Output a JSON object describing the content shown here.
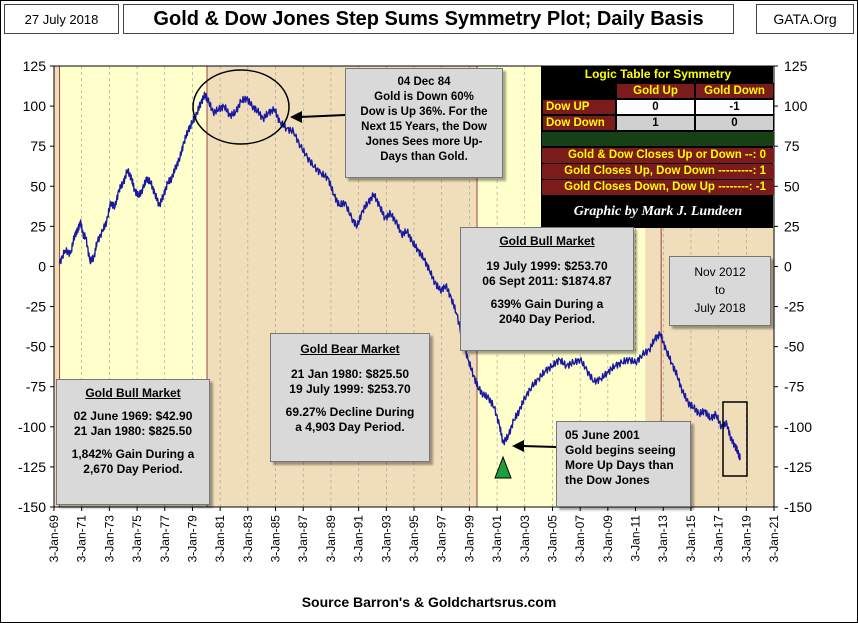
{
  "header": {
    "date": "27 July 2018",
    "title": "Gold & Dow Jones Step Sums Symmetry Plot; Daily Basis",
    "site": "GATA.Org"
  },
  "source": "Source Barron's & Goldchartsrus.com",
  "colors": {
    "line": "#1a1aa0",
    "zone_yellow": "#ffffcc",
    "zone_tan": "#f0debb",
    "divider": "#a04040",
    "arrow_green": "#1e9e3a"
  },
  "annotations": {
    "dec84": [
      "04 Dec 84",
      "Gold is Down 60%",
      "Dow is Up 36%.  For the",
      "Next 15 Years, the Dow",
      "Jones Sees more Up-",
      "Days than Gold."
    ],
    "bull1": {
      "title": "Gold Bull Market",
      "lines": [
        "02 June 1969:  $42.90",
        "21 Jan 1980:  $825.50",
        "",
        "1,842%  Gain During a",
        "2,670  Day Period."
      ]
    },
    "bear": {
      "title": "Gold Bear Market",
      "lines": [
        "21 Jan 1980:  $825.50",
        "19 July 1999:  $253.70",
        "",
        "69.27%  Decline During",
        "a 4,903 Day Period."
      ]
    },
    "bull2": {
      "title": "Gold Bull Market",
      "lines": [
        "19 July 1999:   $253.70",
        "06 Sept 2011:  $1874.87",
        "",
        "639%  Gain During a",
        "2040  Day Period."
      ]
    },
    "nov2012": [
      "Nov 2012",
      "to",
      "July 2018"
    ],
    "june2001": [
      "05 June 2001",
      "Gold  begins seeing",
      "More Up Days than",
      "the Dow Jones"
    ]
  },
  "logic_table": {
    "title": "Logic Table for Symmetry",
    "col_headers": [
      "Gold Up",
      "Gold Down"
    ],
    "rows": [
      {
        "label": "Dow UP",
        "values": [
          "0",
          "-1"
        ]
      },
      {
        "label": "Dow Down",
        "values": [
          "1",
          "0"
        ]
      }
    ],
    "rules": [
      "Gold & Dow Closes Up or Down --:  0",
      "Gold Closes Up, Dow Down ---------:  1",
      "Gold Closes Down, Dow Up --------:  -1"
    ],
    "credit": "Graphic by Mark J. Lundeen"
  },
  "chart_data": {
    "type": "line",
    "title": "Gold & Dow Jones Step Sums Symmetry Plot; Daily Basis",
    "xlabel": "",
    "ylabel": "",
    "ylim": [
      -150,
      125
    ],
    "y_ticks": [
      125,
      100,
      75,
      50,
      25,
      0,
      -25,
      -50,
      -75,
      -100,
      -125,
      -150
    ],
    "y_tick_labels": [
      "125",
      "100",
      "75",
      "50",
      "25",
      "0",
      "-25",
      "-50",
      "-75",
      "-100",
      "-125",
      "-150"
    ],
    "xlim": [
      1969.0,
      2021.0
    ],
    "x_ticks": [
      1969,
      1971,
      1973,
      1975,
      1977,
      1979,
      1981,
      1983,
      1985,
      1987,
      1989,
      1991,
      1993,
      1995,
      1997,
      1999,
      2001,
      2003,
      2005,
      2007,
      2009,
      2011,
      2013,
      2015,
      2017,
      2019,
      2021
    ],
    "x_tick_labels": [
      "3-Jan-69",
      "3-Jan-71",
      "3-Jan-73",
      "3-Jan-75",
      "3-Jan-77",
      "3-Jan-79",
      "3-Jan-81",
      "3-Jan-83",
      "3-Jan-85",
      "3-Jan-87",
      "3-Jan-89",
      "3-Jan-91",
      "3-Jan-93",
      "3-Jan-95",
      "3-Jan-97",
      "3-Jan-99",
      "3-Jan-01",
      "3-Jan-03",
      "3-Jan-05",
      "3-Jan-07",
      "3-Jan-09",
      "3-Jan-11",
      "3-Jan-13",
      "3-Jan-15",
      "3-Jan-17",
      "3-Jan-19",
      "3-Jan-21"
    ],
    "zones": [
      {
        "start": 1969.4,
        "end": 1980.05,
        "label": "Gold Bull Market",
        "color": "yellow"
      },
      {
        "start": 1980.05,
        "end": 1999.55,
        "label": "Gold Bear Market",
        "color": "tan"
      },
      {
        "start": 1999.55,
        "end": 2011.7,
        "label": "Gold Bull Market",
        "color": "yellow"
      },
      {
        "start": 2012.85,
        "end": 2021.0,
        "label": "Nov 2012 to July 2018",
        "color": "tan"
      }
    ],
    "series": [
      {
        "name": "Gold & Dow Step Sums",
        "x": [
          1969.4,
          1969.8,
          1970.2,
          1970.5,
          1970.7,
          1970.9,
          1971.1,
          1971.3,
          1971.6,
          1971.9,
          1972.1,
          1972.5,
          1972.8,
          1973.1,
          1973.4,
          1973.7,
          1974.0,
          1974.3,
          1974.6,
          1974.8,
          1975.1,
          1975.4,
          1975.7,
          1976.0,
          1976.3,
          1976.6,
          1976.9,
          1977.2,
          1977.5,
          1977.8,
          1978.1,
          1978.4,
          1978.7,
          1979.0,
          1979.3,
          1979.6,
          1979.9,
          1980.1,
          1980.5,
          1980.9,
          1981.3,
          1981.7,
          1982.1,
          1982.5,
          1982.9,
          1983.3,
          1983.7,
          1984.1,
          1984.5,
          1984.93,
          1985.3,
          1985.8,
          1986.3,
          1986.8,
          1987.3,
          1987.8,
          1988.3,
          1988.8,
          1989.2,
          1989.6,
          1990.0,
          1990.5,
          1990.9,
          1991.3,
          1991.7,
          1992.1,
          1992.5,
          1992.9,
          1993.3,
          1993.7,
          1994.1,
          1994.5,
          1994.9,
          1995.3,
          1995.7,
          1996.1,
          1996.5,
          1996.9,
          1997.3,
          1997.7,
          1998.1,
          1998.5,
          1998.9,
          1999.3,
          1999.6,
          2000.0,
          2000.4,
          2000.8,
          2001.2,
          2001.43,
          2001.8,
          2002.2,
          2002.6,
          2003.0,
          2003.5,
          2004.0,
          2004.5,
          2005.0,
          2005.5,
          2006.0,
          2006.5,
          2007.0,
          2007.5,
          2008.0,
          2008.5,
          2009.0,
          2009.5,
          2010.0,
          2010.5,
          2011.0,
          2011.5,
          2012.0,
          2012.4,
          2012.8,
          2013.2,
          2013.6,
          2014.0,
          2014.4,
          2014.8,
          2015.2,
          2015.6,
          2016.0,
          2016.4,
          2016.8,
          2017.2,
          2017.6,
          2017.9,
          2018.2,
          2018.4,
          2018.57
        ],
        "values": [
          2,
          10,
          8,
          20,
          22,
          28,
          20,
          18,
          3,
          6,
          15,
          22,
          28,
          40,
          37,
          48,
          52,
          60,
          55,
          48,
          44,
          48,
          55,
          52,
          45,
          38,
          44,
          52,
          55,
          62,
          68,
          78,
          85,
          90,
          95,
          102,
          107,
          104,
          96,
          98,
          100,
          94,
          96,
          103,
          105,
          100,
          97,
          92,
          96,
          98,
          90,
          86,
          84,
          75,
          68,
          62,
          58,
          55,
          45,
          38,
          40,
          30,
          25,
          35,
          40,
          45,
          38,
          30,
          33,
          28,
          20,
          22,
          15,
          10,
          5,
          -2,
          -10,
          -15,
          -12,
          -20,
          -30,
          -45,
          -58,
          -68,
          -75,
          -80,
          -82,
          -88,
          -100,
          -110,
          -106,
          -96,
          -90,
          -82,
          -75,
          -70,
          -65,
          -62,
          -58,
          -62,
          -60,
          -58,
          -65,
          -72,
          -70,
          -66,
          -62,
          -60,
          -58,
          -60,
          -55,
          -52,
          -45,
          -42,
          -52,
          -60,
          -68,
          -78,
          -85,
          -88,
          -92,
          -90,
          -95,
          -92,
          -100,
          -98,
          -108,
          -112,
          -116,
          -120
        ]
      }
    ]
  }
}
